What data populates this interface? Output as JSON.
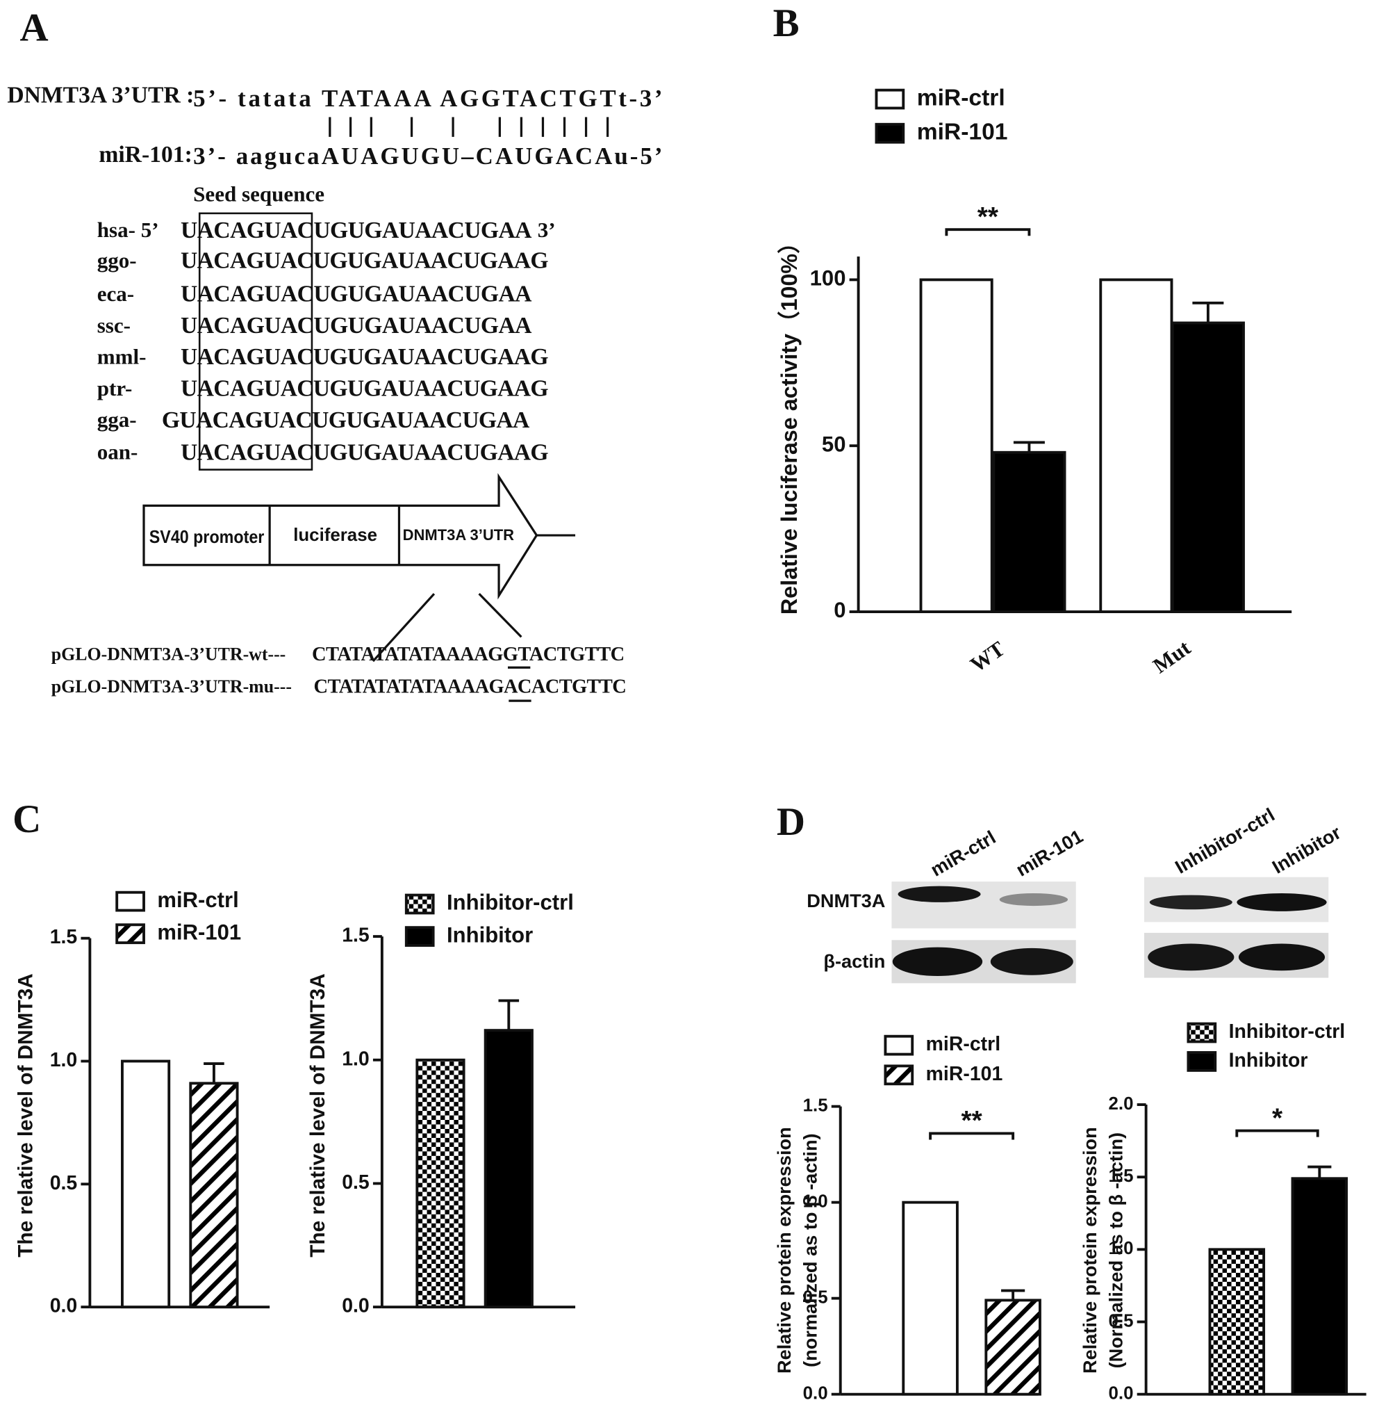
{
  "panel_labels": [
    "A",
    "B",
    "C",
    "D"
  ],
  "panel_a": {
    "utr_label": "DNMT3A 3’UTR :",
    "utr_seq": "5’- tatata TATAAA AGGTACTGTt-3’",
    "mir_label": "miR-101:",
    "mir_seq": "3’- aagucaAUAGUGU–CAUGACAu-5’",
    "seed_title": "Seed sequence",
    "species": [
      {
        "name": "hsa- 5’",
        "seq": "UACAGUACUGUGAUAACUGAA",
        "end": "3’"
      },
      {
        "name": "ggo-",
        "seq": "UACAGUACUGUGAUAACUGAAG"
      },
      {
        "name": "eca-",
        "seq": "UACAGUACUGUGAUAACUGAA"
      },
      {
        "name": "ssc-",
        "seq": "UACAGUACUGUGAUAACUGAA"
      },
      {
        "name": "mml-",
        "seq": "UACAGUACUGUGAUAACUGAAG"
      },
      {
        "name": "ptr-",
        "seq": "UACAGUACUGUGAUAACUGAAG"
      },
      {
        "name": "gga-",
        "seq": "GUACAGUACUGUGAUAACUGAA"
      },
      {
        "name": "oan-",
        "seq": "UACAGUACUGUGAUAACUGAAG"
      }
    ],
    "construct": [
      "SV40 promoter",
      "luciferase",
      "DNMT3A 3’UTR"
    ],
    "wt_label": "pGLO-DNMT3A-3’UTR-wt---",
    "wt_seq": "CTATATATATAAAAGGTACTGTTC",
    "mu_label": "pGLO-DNMT3A-3’UTR-mu---",
    "mu_seq": "CTATATATATAAAAGACACTGTTC"
  },
  "blot": {
    "lanes": [
      "miR-ctrl",
      "miR-101",
      "Inhibitor-ctrl",
      "Inhibitor"
    ],
    "rows": [
      "DNMT3A",
      "β-actin"
    ]
  },
  "chart_data": [
    {
      "type": "bar",
      "ylabel": "Relative luciferase activity（100%）",
      "categories": [
        "WT",
        "Mut"
      ],
      "series": [
        {
          "name": "miR-ctrl",
          "color": "#ffffff",
          "values": [
            100,
            100
          ]
        },
        {
          "name": "miR-101",
          "color": "#000000",
          "values": [
            48,
            87
          ],
          "errors": [
            3,
            6
          ]
        }
      ],
      "ylim": [
        0,
        107
      ],
      "yticks": [
        0,
        50,
        100
      ],
      "annotation": "**"
    },
    {
      "type": "bar",
      "ylabel": "The relative level of DNMT3A",
      "categories": [
        null
      ],
      "series": [
        {
          "name": "miR-ctrl",
          "color": "#ffffff",
          "values": [
            1
          ]
        },
        {
          "name": "miR-101",
          "color": "#ffffff",
          "pattern": "hatch",
          "values": [
            0.91
          ],
          "errors": [
            0.08
          ]
        }
      ],
      "ylim": [
        0,
        1.5
      ],
      "yticks": [
        {
          "value": 0,
          "label": "0.0"
        },
        0.5,
        {
          "value": 1,
          "label": "1.0"
        },
        1.5
      ]
    },
    {
      "type": "bar",
      "ylabel": "The relative level of DNMT3A",
      "categories": [
        null
      ],
      "series": [
        {
          "name": "Inhibitor-ctrl",
          "color": "#ffffff",
          "pattern": "checker",
          "values": [
            1
          ]
        },
        {
          "name": "Inhibitor",
          "color": "#000000",
          "values": [
            1.12
          ],
          "errors": [
            0.12
          ]
        }
      ],
      "ylim": [
        0,
        1.5
      ],
      "yticks": [
        {
          "value": 0,
          "label": "0.0"
        },
        0.5,
        {
          "value": 1,
          "label": "1.0"
        },
        1.5
      ]
    },
    {
      "type": "bar",
      "ylabel": [
        "Relative protein expression",
        "(normalized as to β -actin)"
      ],
      "categories": [
        null
      ],
      "series": [
        {
          "name": "miR-ctrl",
          "color": "#ffffff",
          "values": [
            1
          ]
        },
        {
          "name": "miR-101",
          "color": "#ffffff",
          "pattern": "hatch",
          "values": [
            0.49
          ],
          "errors": [
            0.05
          ]
        }
      ],
      "ylim": [
        0,
        1.5
      ],
      "yticks": [
        {
          "value": 0,
          "label": "0.0"
        },
        0.5,
        {
          "value": 1,
          "label": "1.0"
        },
        1.5
      ],
      "annotation": "**"
    },
    {
      "type": "bar",
      "ylabel": [
        "Relative protein expression",
        "(Normalized as to β -actin)"
      ],
      "categories": [
        null
      ],
      "series": [
        {
          "name": "Inhibitor-ctrl",
          "color": "#ffffff",
          "pattern": "checker",
          "values": [
            1
          ]
        },
        {
          "name": "Inhibitor",
          "color": "#000000",
          "values": [
            1.49
          ],
          "errors": [
            0.08
          ]
        }
      ],
      "ylim": [
        0,
        2
      ],
      "yticks": [
        {
          "value": 0,
          "label": "0.0"
        },
        0.5,
        {
          "value": 1,
          "label": "1.0"
        },
        1.5,
        {
          "value": 2,
          "label": "2.0"
        }
      ],
      "annotation": "*"
    }
  ]
}
